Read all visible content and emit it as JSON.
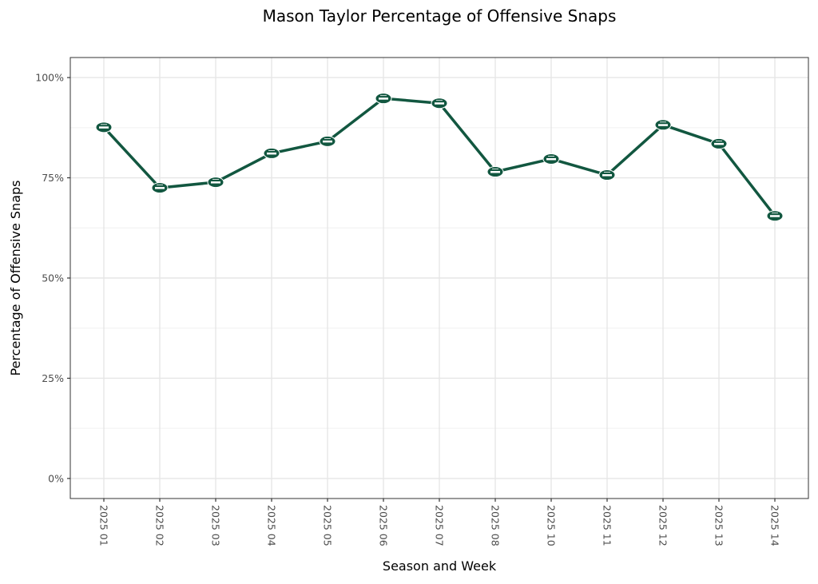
{
  "chart_data": {
    "type": "line",
    "title": "Mason Taylor Percentage of Offensive Snaps",
    "xlabel": "Season and Week",
    "ylabel": "Percentage of Offensive Snaps",
    "categories": [
      "2025 01",
      "2025 02",
      "2025 03",
      "2025 04",
      "2025 05",
      "2025 06",
      "2025 07",
      "2025 08",
      "2025 10",
      "2025 11",
      "2025 12",
      "2025 13",
      "2025 14"
    ],
    "series": [
      {
        "name": "Mason Taylor",
        "values": [
          87.6,
          72.5,
          73.9,
          81.1,
          84.1,
          94.8,
          93.6,
          76.5,
          79.7,
          75.7,
          88.2,
          83.5,
          65.5
        ],
        "color": "#125740",
        "marker": "team-logo"
      }
    ],
    "ylim": [
      -5,
      105
    ],
    "yticks": [
      0,
      25,
      50,
      75,
      100
    ],
    "ytick_labels": [
      "0%",
      "25%",
      "50%",
      "75%",
      "100%"
    ],
    "grid": true,
    "legend": "none"
  }
}
